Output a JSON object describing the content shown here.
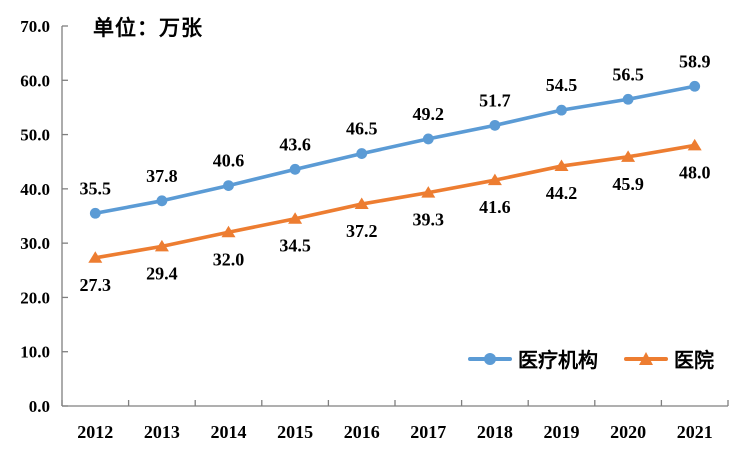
{
  "chart_data": {
    "type": "line",
    "unit_label": "单位：万张",
    "categories": [
      "2012",
      "2013",
      "2014",
      "2015",
      "2016",
      "2017",
      "2018",
      "2019",
      "2020",
      "2021"
    ],
    "series": [
      {
        "name": "医疗机构",
        "color": "#5B9BD5",
        "marker": "circle",
        "label_position": "above",
        "values": [
          35.5,
          37.8,
          40.6,
          43.6,
          46.5,
          49.2,
          51.7,
          54.5,
          56.5,
          58.9
        ]
      },
      {
        "name": "医院",
        "color": "#ED7D31",
        "marker": "triangle",
        "label_position": "below",
        "values": [
          27.3,
          29.4,
          32.0,
          34.5,
          37.2,
          39.3,
          41.6,
          44.2,
          45.9,
          48.0
        ]
      }
    ],
    "ylim": [
      0,
      70
    ],
    "ytick_step": 10,
    "ytick_decimals": 1,
    "grid": false,
    "legend_position": "inside-bottom-right",
    "axis_color": "#7F7F7F",
    "text_color": "#000000",
    "background_color": "#FFFFFF"
  }
}
